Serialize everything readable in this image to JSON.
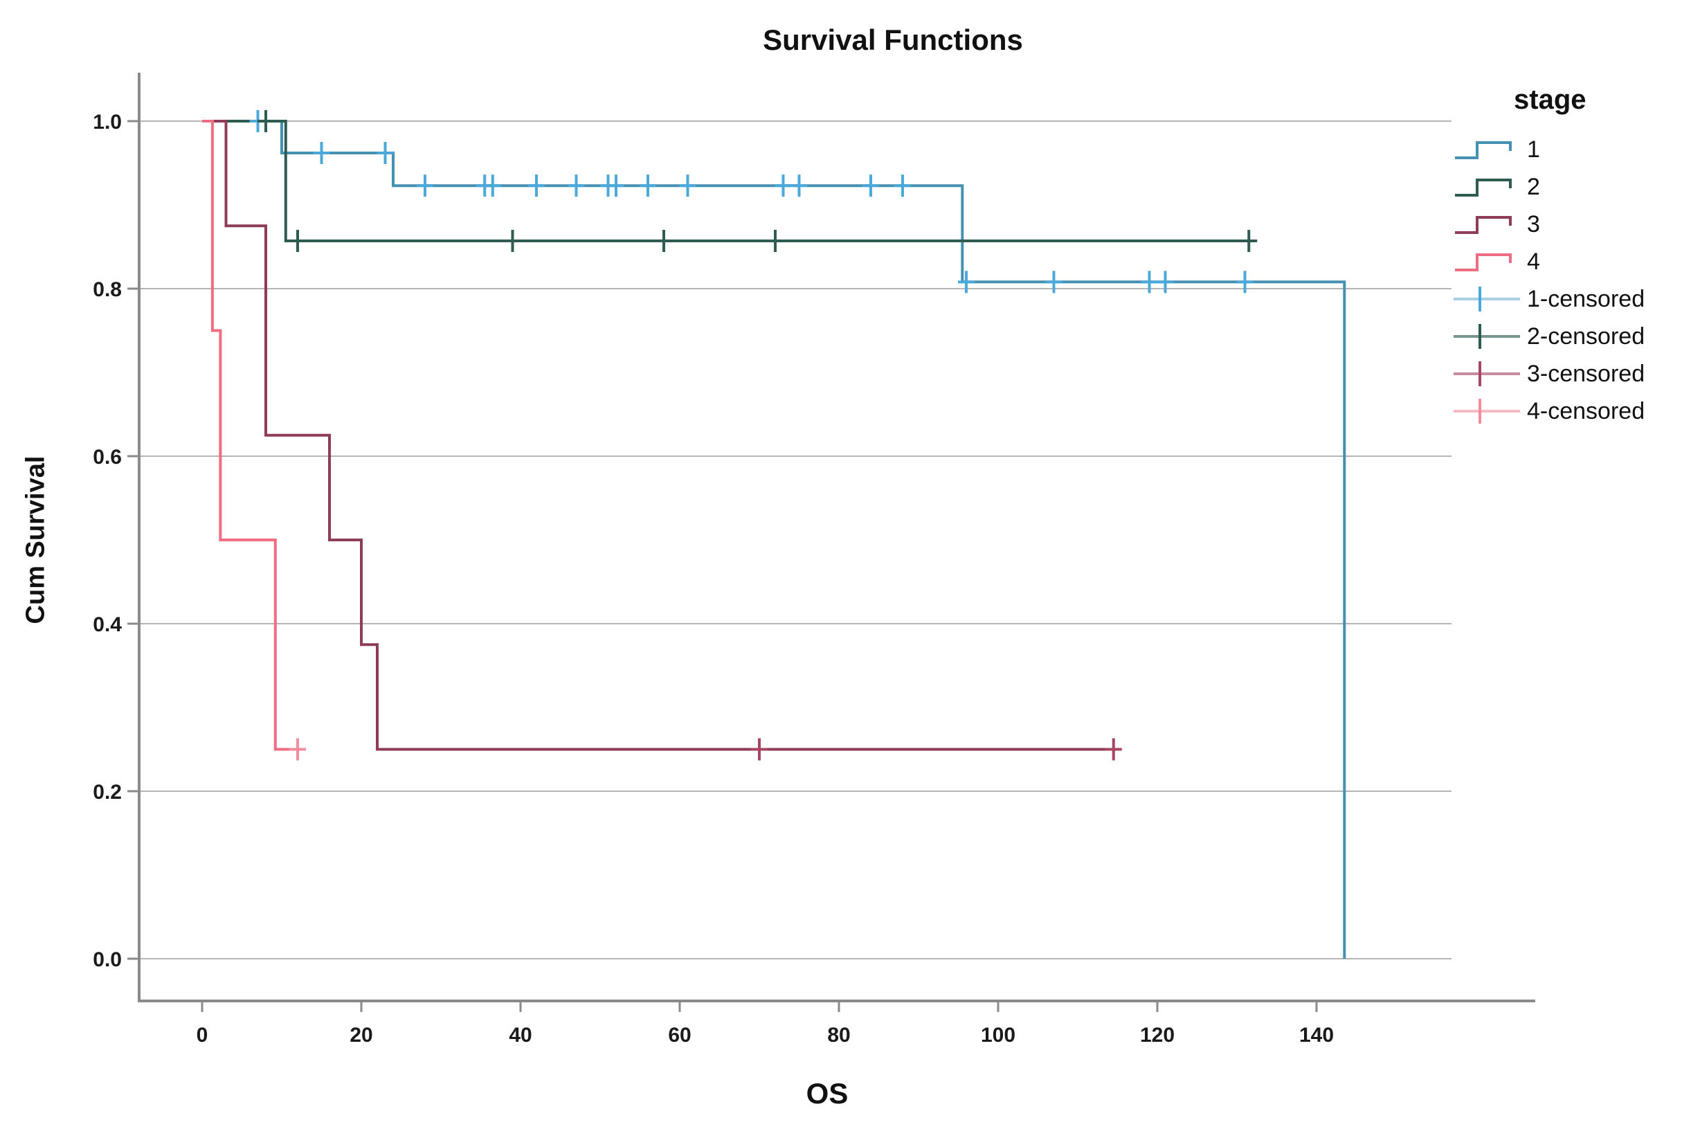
{
  "chart_data": {
    "type": "line",
    "subtype": "kaplan_meier_step",
    "title": "Survival Functions",
    "xlabel": "OS",
    "ylabel": "Cum Survival",
    "legend_title": "stage",
    "legend_position": "right",
    "grid": true,
    "xlim": [
      0,
      167
    ],
    "ylim": [
      0,
      1.06
    ],
    "x_tick_values": [
      0,
      20,
      40,
      60,
      80,
      100,
      120,
      140
    ],
    "x_tick_labels": [
      "0",
      "20",
      "40",
      "60",
      "80",
      "100",
      "120",
      "140"
    ],
    "y_tick_values": [
      0.0,
      0.2,
      0.4,
      0.6,
      0.8,
      1.0
    ],
    "y_tick_labels": [
      "0.0",
      "0.2",
      "0.4",
      "0.6",
      "0.8",
      "1.0"
    ],
    "series": [
      {
        "name": "1",
        "color": "#4690b2",
        "censor_color": "#4ba9d9",
        "steps": [
          [
            0,
            1.0
          ],
          [
            10,
            1.0
          ],
          [
            10,
            0.962
          ],
          [
            24,
            0.962
          ],
          [
            24,
            0.923
          ],
          [
            95.5,
            0.923
          ],
          [
            95.5,
            0.808
          ],
          [
            143.5,
            0.808
          ],
          [
            143.5,
            0.0
          ]
        ],
        "censored": [
          [
            7,
            1.0
          ],
          [
            15,
            0.962
          ],
          [
            23,
            0.962
          ],
          [
            28,
            0.923
          ],
          [
            35.5,
            0.923
          ],
          [
            36.5,
            0.923
          ],
          [
            42,
            0.923
          ],
          [
            47,
            0.923
          ],
          [
            51,
            0.923
          ],
          [
            52,
            0.923
          ],
          [
            56,
            0.923
          ],
          [
            61,
            0.923
          ],
          [
            73,
            0.923
          ],
          [
            75,
            0.923
          ],
          [
            84,
            0.923
          ],
          [
            88,
            0.923
          ],
          [
            96,
            0.808
          ],
          [
            107,
            0.808
          ],
          [
            119,
            0.808
          ],
          [
            121,
            0.808
          ],
          [
            131,
            0.808
          ]
        ]
      },
      {
        "name": "2",
        "color": "#2e5c50",
        "censor_color": "#2e5c50",
        "steps": [
          [
            0,
            1.0
          ],
          [
            10.5,
            1.0
          ],
          [
            10.5,
            0.857
          ],
          [
            132.5,
            0.857
          ]
        ],
        "censored": [
          [
            8,
            1.0
          ],
          [
            12,
            0.857
          ],
          [
            39,
            0.857
          ],
          [
            58,
            0.857
          ],
          [
            72,
            0.857
          ],
          [
            131.5,
            0.857
          ]
        ]
      },
      {
        "name": "3",
        "color": "#8f3c58",
        "censor_color": "#a84563",
        "steps": [
          [
            0,
            1.0
          ],
          [
            3,
            1.0
          ],
          [
            3,
            0.875
          ],
          [
            8,
            0.875
          ],
          [
            8,
            0.625
          ],
          [
            16,
            0.625
          ],
          [
            16,
            0.5
          ],
          [
            20,
            0.5
          ],
          [
            20,
            0.375
          ],
          [
            22,
            0.375
          ],
          [
            22,
            0.25
          ],
          [
            115.5,
            0.25
          ]
        ],
        "censored": [
          [
            70,
            0.25
          ],
          [
            114.5,
            0.25
          ]
        ]
      },
      {
        "name": "4",
        "color": "#ee6d82",
        "censor_color": "#f58c9c",
        "steps": [
          [
            0,
            1.0
          ],
          [
            1.3,
            1.0
          ],
          [
            1.3,
            0.75
          ],
          [
            2.3,
            0.75
          ],
          [
            2.3,
            0.5
          ],
          [
            9.2,
            0.5
          ],
          [
            9.2,
            0.25
          ],
          [
            13,
            0.25
          ]
        ],
        "censored": [
          [
            12,
            0.25
          ]
        ]
      }
    ],
    "legend": [
      {
        "label": "1",
        "type": "step",
        "color": "#4690b2"
      },
      {
        "label": "2",
        "type": "step",
        "color": "#2e5c50"
      },
      {
        "label": "3",
        "type": "step",
        "color": "#8f3c58"
      },
      {
        "label": "4",
        "type": "step",
        "color": "#ee6d82"
      },
      {
        "label": "1-censored",
        "type": "censor",
        "color": "#4ba9d9",
        "line_color": "#a9cfe4"
      },
      {
        "label": "2-censored",
        "type": "censor",
        "color": "#2e5c50",
        "line_color": "#7a958d"
      },
      {
        "label": "3-censored",
        "type": "censor",
        "color": "#a84563",
        "line_color": "#c98ba0"
      },
      {
        "label": "4-censored",
        "type": "censor",
        "color": "#f58c9c",
        "line_color": "#f5bac4"
      }
    ],
    "style": {
      "grid_color": "#b5b5b5",
      "axis_color": "#8a8a8a",
      "tick_label_color": "#1a1a1a",
      "background": "#ffffff"
    }
  }
}
